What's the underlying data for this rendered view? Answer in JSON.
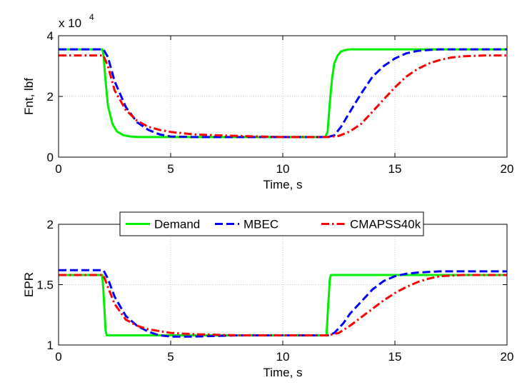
{
  "chart_data": [
    {
      "type": "line",
      "xlabel": "Time, s",
      "ylabel": "Fnt, lbf",
      "y_multiplier_label": "x 10",
      "y_multiplier_exponent": "4",
      "xlim": [
        0,
        20
      ],
      "ylim": [
        0,
        4
      ],
      "xticks": [
        0,
        5,
        10,
        15,
        20
      ],
      "yticks": [
        0,
        2,
        4
      ],
      "grid": true,
      "series": [
        {
          "name": "Demand",
          "color": "#00ee00",
          "style": "solid",
          "x": [
            0,
            1.95,
            2.0,
            2.1,
            2.2,
            2.4,
            2.6,
            2.9,
            3.2,
            3.6,
            5.0,
            8.0,
            10.0,
            11.9,
            12.0,
            12.1,
            12.2,
            12.3,
            12.45,
            12.6,
            12.8,
            13.0,
            14.0,
            16.0,
            20.0
          ],
          "y": [
            3.55,
            3.55,
            3.4,
            2.5,
            1.7,
            1.1,
            0.85,
            0.72,
            0.68,
            0.66,
            0.66,
            0.66,
            0.66,
            0.66,
            0.85,
            1.8,
            2.6,
            3.1,
            3.35,
            3.48,
            3.53,
            3.55,
            3.55,
            3.55,
            3.55
          ]
        },
        {
          "name": "MBEC",
          "color": "#0000ff",
          "style": "dashed",
          "x": [
            0,
            2.0,
            2.2,
            2.5,
            3.0,
            3.5,
            4.0,
            4.5,
            5.0,
            6.0,
            7.0,
            8.0,
            10.0,
            12.0,
            12.3,
            12.6,
            13.0,
            13.5,
            14.0,
            14.5,
            15.0,
            15.5,
            16.0,
            16.5,
            17.0,
            18.0,
            20.0
          ],
          "y": [
            3.55,
            3.55,
            3.3,
            2.5,
            1.65,
            1.15,
            0.9,
            0.75,
            0.68,
            0.66,
            0.66,
            0.66,
            0.66,
            0.66,
            0.72,
            1.0,
            1.5,
            2.1,
            2.65,
            3.0,
            3.25,
            3.42,
            3.5,
            3.53,
            3.55,
            3.55,
            3.55
          ]
        },
        {
          "name": "CMAPSS40k",
          "color": "#ff0000",
          "style": "dashdot",
          "x": [
            0,
            2.0,
            2.2,
            2.5,
            3.0,
            3.5,
            4.0,
            4.5,
            5.0,
            6.0,
            7.0,
            8.0,
            10.0,
            12.0,
            12.5,
            13.0,
            13.5,
            14.0,
            14.5,
            15.0,
            15.5,
            16.0,
            16.5,
            17.0,
            17.5,
            18.0,
            19.0,
            20.0
          ],
          "y": [
            3.35,
            3.35,
            3.0,
            2.2,
            1.55,
            1.2,
            1.0,
            0.9,
            0.83,
            0.75,
            0.72,
            0.7,
            0.66,
            0.66,
            0.7,
            0.85,
            1.1,
            1.5,
            1.9,
            2.3,
            2.65,
            2.9,
            3.08,
            3.2,
            3.28,
            3.32,
            3.35,
            3.35
          ]
        }
      ]
    },
    {
      "type": "line",
      "xlabel": "Time, s",
      "ylabel": "EPR",
      "xlim": [
        0,
        20
      ],
      "ylim": [
        1,
        2
      ],
      "xticks": [
        0,
        5,
        10,
        15,
        20
      ],
      "yticks": [
        1,
        1.5,
        2
      ],
      "ytick_labels": [
        "1",
        "1.5",
        "2"
      ],
      "grid": true,
      "legend": {
        "placement": "top-center",
        "orientation": "horizontal"
      },
      "series": [
        {
          "name": "Demand",
          "color": "#00ee00",
          "style": "solid",
          "x": [
            0,
            1.95,
            2.0,
            2.1,
            2.15,
            10.0,
            11.95,
            12.0,
            12.1,
            12.15,
            16.0,
            20.0
          ],
          "y": [
            1.58,
            1.58,
            1.45,
            1.12,
            1.08,
            1.08,
            1.08,
            1.25,
            1.55,
            1.58,
            1.58,
            1.58
          ]
        },
        {
          "name": "MBEC",
          "color": "#0000ff",
          "style": "dashed",
          "x": [
            0,
            2.0,
            2.2,
            2.5,
            3.0,
            3.5,
            4.0,
            4.5,
            5.0,
            6.0,
            8.0,
            10.0,
            12.0,
            12.3,
            12.7,
            13.0,
            13.5,
            14.0,
            14.5,
            15.0,
            15.5,
            16.0,
            17.0,
            20.0
          ],
          "y": [
            1.62,
            1.62,
            1.55,
            1.4,
            1.24,
            1.16,
            1.11,
            1.08,
            1.07,
            1.07,
            1.08,
            1.08,
            1.08,
            1.1,
            1.18,
            1.26,
            1.36,
            1.46,
            1.53,
            1.57,
            1.59,
            1.6,
            1.61,
            1.61
          ]
        },
        {
          "name": "CMAPSS40k",
          "color": "#ff0000",
          "style": "dashdot",
          "x": [
            0,
            2.0,
            2.2,
            2.5,
            3.0,
            3.5,
            4.0,
            5.0,
            6.0,
            8.0,
            10.0,
            12.0,
            12.5,
            13.0,
            13.5,
            14.0,
            14.5,
            15.0,
            15.5,
            16.0,
            16.5,
            17.0,
            18.0,
            20.0
          ],
          "y": [
            1.58,
            1.58,
            1.48,
            1.34,
            1.21,
            1.16,
            1.13,
            1.1,
            1.09,
            1.08,
            1.08,
            1.08,
            1.1,
            1.16,
            1.23,
            1.3,
            1.37,
            1.43,
            1.48,
            1.52,
            1.55,
            1.57,
            1.58,
            1.58
          ]
        }
      ]
    }
  ]
}
